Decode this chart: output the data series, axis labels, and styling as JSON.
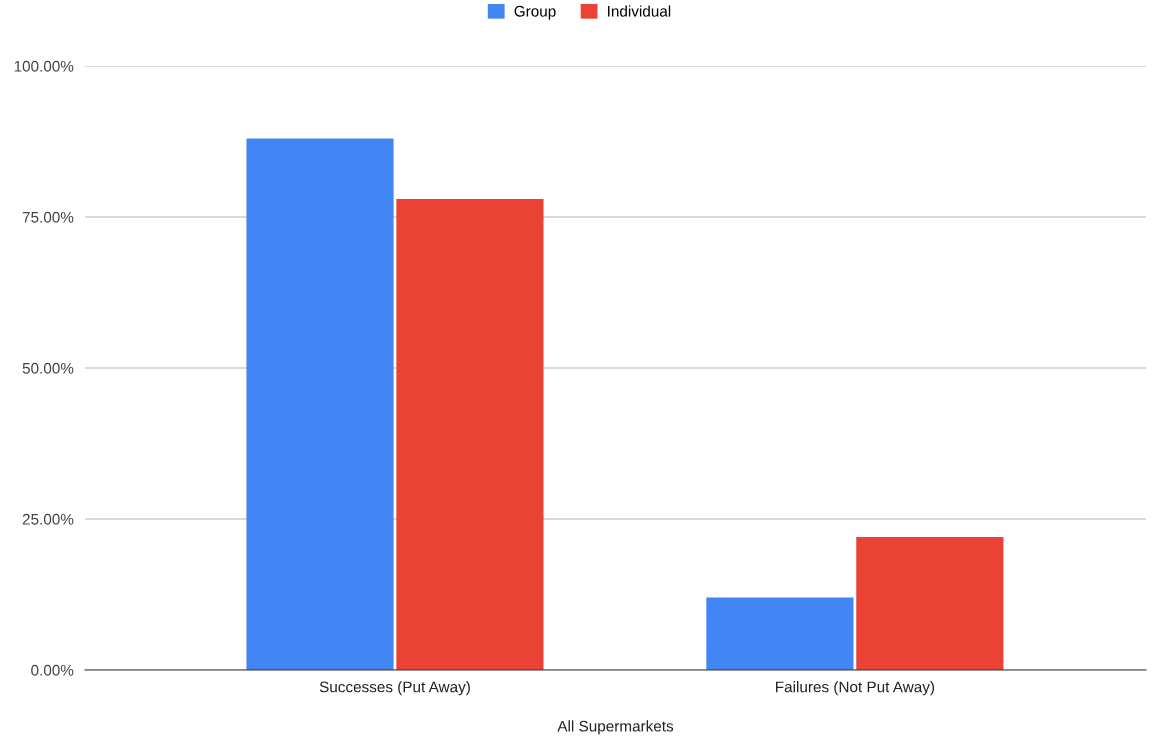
{
  "chart_data": {
    "type": "bar",
    "categories": [
      "Successes (Put Away)",
      "Failures (Not Put Away)"
    ],
    "xlabel": "All Supermarkets",
    "series": [
      {
        "name": "Group",
        "color": "#4285f4",
        "values": [
          88,
          12
        ]
      },
      {
        "name": "Individual",
        "color": "#ea4335",
        "values": [
          78,
          22
        ]
      }
    ],
    "ylim": [
      0,
      100
    ],
    "yticks": [
      {
        "value": 0,
        "label": "0.00%"
      },
      {
        "value": 25,
        "label": "25.00%"
      },
      {
        "value": 50,
        "label": "50.00%"
      },
      {
        "value": 75,
        "label": "75.00%"
      },
      {
        "value": 100,
        "label": "100.00%"
      }
    ],
    "grid": "y",
    "legend": "top"
  }
}
